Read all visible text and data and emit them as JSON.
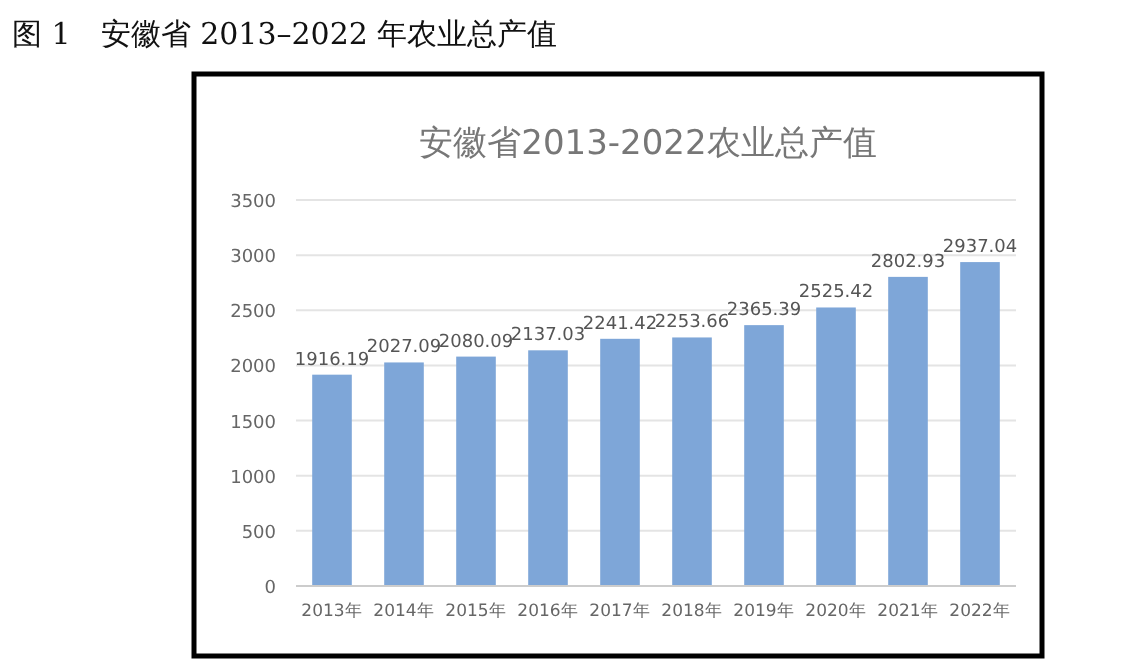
{
  "chart_data": {
    "type": "bar",
    "title": "安徽省2013-2022农业总产值",
    "annotations": [
      "图 1　安徽省 2013–2022 年农业总产值"
    ],
    "categories": [
      "2013年",
      "2014年",
      "2015年",
      "2016年",
      "2017年",
      "2018年",
      "2019年",
      "2020年",
      "2021年",
      "2022年"
    ],
    "values": [
      1916.19,
      2027.09,
      2080.09,
      2137.03,
      2241.42,
      2253.66,
      2365.39,
      2525.42,
      2802.93,
      2937.04
    ],
    "color": "#7ea6d8",
    "ylim": [
      0,
      3500
    ],
    "yticks": [
      0,
      500,
      1000,
      1500,
      2000,
      2500,
      3000,
      3500
    ],
    "grid": "y",
    "data_labels": true
  }
}
